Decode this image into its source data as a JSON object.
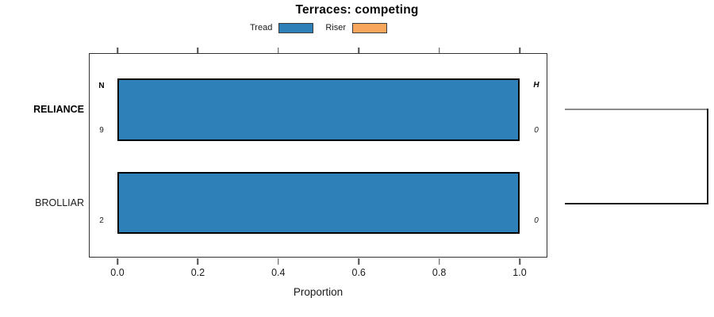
{
  "chart_data": {
    "type": "bar",
    "orientation": "horizontal",
    "title": "Terraces: competing",
    "xlabel": "Proportion",
    "xlim": [
      0.0,
      1.0
    ],
    "xtick_labels": [
      "0.0",
      "0.2",
      "0.4",
      "0.6",
      "0.8",
      "1.0"
    ],
    "grid": false,
    "legend_position": "top-center",
    "categories": [
      "RELIANCE",
      "BROLLIAR"
    ],
    "series": [
      {
        "name": "Tread",
        "color": "#2D80B8",
        "values": [
          1.0,
          1.0
        ]
      },
      {
        "name": "Riser",
        "color": "#F7A65C",
        "values": [
          0.0,
          0.0
        ]
      }
    ],
    "annotations": {
      "left_header": "N",
      "right_header": "H",
      "left_values": [
        "9",
        "2"
      ],
      "right_values": [
        "0",
        "0"
      ]
    }
  },
  "dendrogram": {
    "description": "cluster bracket joining the two category rows at the right edge",
    "top_branch_color": "#8C8C8C",
    "bottom_branch_color": "#1F1F1F"
  },
  "style_colors": {
    "bar_fill": "#2D80B8",
    "riser_fill": "#F7A65C",
    "bar_border": "#000000",
    "box_border": "#333333"
  }
}
